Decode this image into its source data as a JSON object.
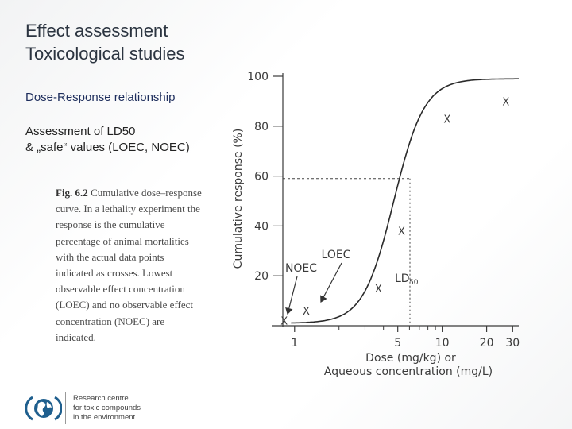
{
  "slide": {
    "title_line1": "Effect assessment",
    "title_line2": "Toxicological studies",
    "subtitle": "Dose-Response relationship",
    "assessment_line1": "Assessment of LD50",
    "assessment_line2": "& „safe“ values (LOEC, NOEC)"
  },
  "caption": {
    "fig_label": "Fig. 6.2",
    "text": "Cumulative dose–response curve. In a lethality experiment the response is the cumulative percentage of animal mortalities with the actual data points indicated as crosses. Lowest observable effect concentration (LOEC) and no observable effect concentration (NOEC) are indicated."
  },
  "logo": {
    "line1": "Research centre",
    "line2": "for toxic compounds",
    "line3": "in the environment",
    "accent": "#1f5f8e"
  },
  "chart_data": {
    "type": "line",
    "ylabel": "Cumulative response (%)",
    "xlabel_line1": "Dose (mg/kg) or",
    "xlabel_line2": "Aqueous concentration (mg/L)",
    "x_scale": "log",
    "xlim": [
      0.7,
      33
    ],
    "ylim": [
      0,
      100
    ],
    "y_ticks": [
      20,
      40,
      60,
      80,
      100
    ],
    "x_ticks": [
      1,
      5,
      10,
      20,
      30
    ],
    "x_ticks_minor": [
      2,
      3,
      4,
      6,
      7,
      8,
      9
    ],
    "points": [
      {
        "x": 0.85,
        "y": 2
      },
      {
        "x": 1.2,
        "y": 6
      },
      {
        "x": 3.7,
        "y": 15
      },
      {
        "x": 5.3,
        "y": 38
      },
      {
        "x": 10.8,
        "y": 83
      },
      {
        "x": 27,
        "y": 90
      }
    ],
    "curve": {
      "ld50": 4.7,
      "slope": 4.2
    },
    "ld50_y": 50,
    "ref_line_y": 59,
    "labels": {
      "noec": "NOEC",
      "loec": "LOEC",
      "ld50": "LD",
      "ld50_sub": "50"
    },
    "point_marker": "X",
    "colors": {
      "axis": "#3a3a3a",
      "curve": "#2a2a2a",
      "grid_dash": "#444444"
    }
  }
}
